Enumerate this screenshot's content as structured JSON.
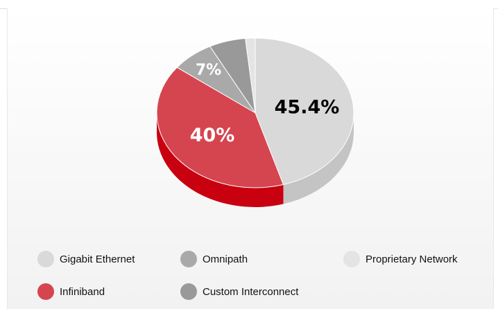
{
  "chart_data": {
    "type": "pie",
    "three_d": true,
    "start": "12 o'clock, clockwise",
    "slices": [
      {
        "label": "Gigabit Ethernet",
        "value": 45.4,
        "data_label": "45.4%",
        "color": "#d9d9d9",
        "side_color": "#c4c4c4",
        "label_color": "#000000"
      },
      {
        "label": "Infiniband",
        "value": 40,
        "data_label": "40%",
        "color": "#d5454f",
        "side_color": "#c8000f",
        "label_color": "#ffffff"
      },
      {
        "label": "Omnipath",
        "value": 7,
        "data_label": "7%",
        "color": "#a9a9a9",
        "side_color": "#8f8f8f",
        "label_color": "#ffffff"
      },
      {
        "label": "Custom Interconnect",
        "value": 6,
        "data_label": "",
        "color": "#999999",
        "side_color": "#808080",
        "label_color": "#ffffff"
      },
      {
        "label": "Proprietary Network",
        "value": 1.6,
        "data_label": "",
        "color": "#e4e4e4",
        "side_color": "#cfcfcf",
        "label_color": "#000000"
      }
    ],
    "legend": {
      "placement": "bottom",
      "entries": [
        {
          "label": "Gigabit Ethernet",
          "color": "#d9d9d9"
        },
        {
          "label": "Omnipath",
          "color": "#a9a9a9"
        },
        {
          "label": "Proprietary Network",
          "color": "#e4e4e4"
        },
        {
          "label": "Infiniband",
          "color": "#d5454f"
        },
        {
          "label": "Custom Interconnect",
          "color": "#999999"
        }
      ]
    }
  }
}
